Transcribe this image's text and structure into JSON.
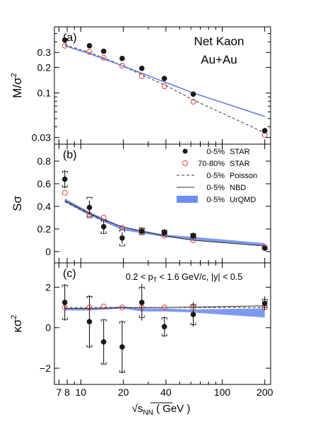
{
  "figure": {
    "x_axis": {
      "scale": "log",
      "range": [
        6.5,
        220
      ],
      "ticks": [
        7,
        8,
        10,
        20,
        40,
        100,
        200
      ],
      "tick_labels": [
        "7",
        "8",
        "10",
        "20",
        "40",
        "100",
        "200"
      ],
      "label_prefix": "√",
      "label_main": "s",
      "label_sub": "NN",
      "label_suffix": " ( GeV )"
    },
    "colors": {
      "star_central": "#1a1a1a",
      "star_peripheral": "#e0403a",
      "poisson": "#333333",
      "nbd": "#333333",
      "urqmd_line": "#5a78e6",
      "urqmd_band": "#6f8ff0"
    }
  },
  "chart_data": [
    {
      "type": "scatter",
      "panel_label": "(a)",
      "title": "Net Kaon",
      "subtitle": "Au+Au",
      "ylabel_main": "M/σ",
      "ylabel_sup": "2",
      "yscale": "log",
      "ylim": [
        0.025,
        0.6
      ],
      "yticks": [
        0.03,
        0.1,
        0.2,
        0.3
      ],
      "ytick_labels": [
        "0.03",
        "0.1",
        "0.2",
        "0.3"
      ],
      "series": [
        {
          "name": "0-5% STAR",
          "marker": "filled-circle",
          "x": [
            7.7,
            11.5,
            14.5,
            19.6,
            27,
            39,
            62.4,
            200
          ],
          "y": [
            0.42,
            0.36,
            0.31,
            0.255,
            0.195,
            0.148,
            0.097,
            0.036
          ]
        },
        {
          "name": "70-80% STAR",
          "marker": "open-circle",
          "x": [
            7.7,
            11.5,
            14.5,
            19.6,
            27,
            39,
            62.4,
            200
          ],
          "y": [
            0.36,
            0.305,
            0.26,
            0.21,
            0.158,
            0.12,
            0.079,
            0.032
          ]
        },
        {
          "name": "0-5% Poisson",
          "style": "dashed",
          "x": [
            7.7,
            11.5,
            14.5,
            19.6,
            27,
            39,
            62.4,
            200
          ],
          "y": [
            0.37,
            0.3,
            0.26,
            0.21,
            0.163,
            0.125,
            0.083,
            0.034
          ]
        },
        {
          "name": "0-5% UrQMD",
          "style": "band-line",
          "x": [
            7.7,
            11.5,
            19.6,
            39,
            62.4,
            200
          ],
          "y": [
            0.36,
            0.29,
            0.21,
            0.135,
            0.1,
            0.053
          ]
        }
      ]
    },
    {
      "type": "scatter",
      "panel_label": "(b)",
      "ylabel_main": "Sσ",
      "ylim": [
        -0.1,
        0.95
      ],
      "yticks": [
        0,
        0.2,
        0.4,
        0.6,
        0.8
      ],
      "ytick_labels": [
        "0",
        "0.2",
        "0.4",
        "0.6",
        "0.8"
      ],
      "legend": [
        {
          "cent": "0-5%",
          "label": "STAR",
          "marker": "filled-circle"
        },
        {
          "cent": "70-80%",
          "label": "STAR",
          "marker": "open-circle"
        },
        {
          "cent": "0-5%",
          "label": "Poisson",
          "marker": "dashed"
        },
        {
          "cent": "0-5%",
          "label": "NBD",
          "marker": "solid"
        },
        {
          "cent": "0-5%",
          "label": "UrQMD",
          "marker": "band"
        }
      ],
      "series": [
        {
          "name": "0-5% STAR",
          "marker": "filled-circle",
          "x": [
            7.7,
            11.5,
            14.5,
            19.6,
            27,
            39,
            62.4,
            200
          ],
          "y": [
            0.64,
            0.39,
            0.22,
            0.12,
            0.18,
            0.17,
            0.14,
            0.03
          ],
          "yerr": [
            0.08,
            0.06,
            0.06,
            0.05,
            0.03,
            0.03,
            0.03,
            0.01
          ],
          "sys": [
            0.07,
            0.09,
            0.06,
            0.07,
            0.03,
            0.02,
            0.02,
            0.01
          ]
        },
        {
          "name": "70-80% STAR",
          "marker": "open-circle",
          "x": [
            7.7,
            11.5,
            14.5,
            19.6,
            27,
            39,
            62.4,
            200
          ],
          "y": [
            0.52,
            0.33,
            0.3,
            0.21,
            0.18,
            0.14,
            0.1,
            0.04
          ]
        },
        {
          "name": "0-5% Poisson",
          "style": "dashed",
          "x": [
            7.7,
            11.5,
            14.5,
            19.6,
            27,
            39,
            62.4,
            200
          ],
          "y": [
            0.44,
            0.33,
            0.28,
            0.22,
            0.18,
            0.14,
            0.1,
            0.05
          ]
        },
        {
          "name": "0-5% NBD",
          "style": "solid",
          "x": [
            7.7,
            11.5,
            14.5,
            19.6,
            27,
            39,
            62.4,
            200
          ],
          "y": [
            0.45,
            0.34,
            0.28,
            0.22,
            0.18,
            0.14,
            0.1,
            0.05
          ]
        },
        {
          "name": "0-5% UrQMD",
          "style": "band",
          "x": [
            7.7,
            11.5,
            19.6,
            39,
            62.4,
            200
          ],
          "ylow": [
            0.44,
            0.32,
            0.19,
            0.13,
            0.1,
            0.05
          ],
          "yhigh": [
            0.47,
            0.35,
            0.22,
            0.15,
            0.13,
            0.075
          ]
        }
      ]
    },
    {
      "type": "scatter",
      "panel_label": "(c)",
      "annotation": "0.2 < p",
      "annotation_sub": "T",
      "annotation_rest": " < 1.6 GeV/c, |y| < 0.5",
      "ylabel_main": "κσ",
      "ylabel_sup": "2",
      "ylim": [
        -2.8,
        3.2
      ],
      "yticks": [
        -2,
        0,
        2
      ],
      "ytick_labels": [
        "−2",
        "0",
        "2"
      ],
      "series": [
        {
          "name": "0-5% STAR",
          "marker": "filled-circle",
          "x": [
            7.7,
            11.5,
            14.5,
            19.6,
            27,
            39,
            62.4,
            200
          ],
          "y": [
            1.25,
            0.3,
            -0.7,
            -0.95,
            1.25,
            0.05,
            0.65,
            1.2
          ],
          "yerr": [
            0.9,
            1.3,
            1.1,
            1.3,
            0.9,
            0.5,
            0.6,
            0.35
          ],
          "sys": [
            0.85,
            1.25,
            1.1,
            1.25,
            0.75,
            0.45,
            0.5,
            0.2
          ]
        },
        {
          "name": "70-80% STAR",
          "marker": "open-circle",
          "x": [
            7.7,
            11.5,
            14.5,
            19.6,
            27,
            39,
            62.4,
            200
          ],
          "y": [
            1.0,
            1.0,
            1.05,
            1.0,
            1.0,
            1.0,
            1.0,
            1.0
          ]
        },
        {
          "name": "0-5% Poisson",
          "style": "dashed",
          "x": [
            7.7,
            200
          ],
          "y": [
            1.0,
            1.0
          ]
        },
        {
          "name": "0-5% NBD",
          "style": "solid",
          "x": [
            7.7,
            11.5,
            19.6,
            39,
            62.4,
            200
          ],
          "y": [
            0.95,
            0.95,
            0.98,
            1.0,
            1.02,
            1.08
          ]
        },
        {
          "name": "0-5% UrQMD",
          "style": "band",
          "x": [
            7.7,
            11.5,
            19.6,
            27,
            39,
            62.4,
            200
          ],
          "ylow": [
            0.85,
            0.85,
            0.95,
            0.8,
            0.8,
            0.75,
            0.5
          ],
          "yhigh": [
            0.95,
            0.95,
            1.05,
            0.95,
            0.95,
            0.9,
            0.95
          ]
        }
      ]
    }
  ]
}
